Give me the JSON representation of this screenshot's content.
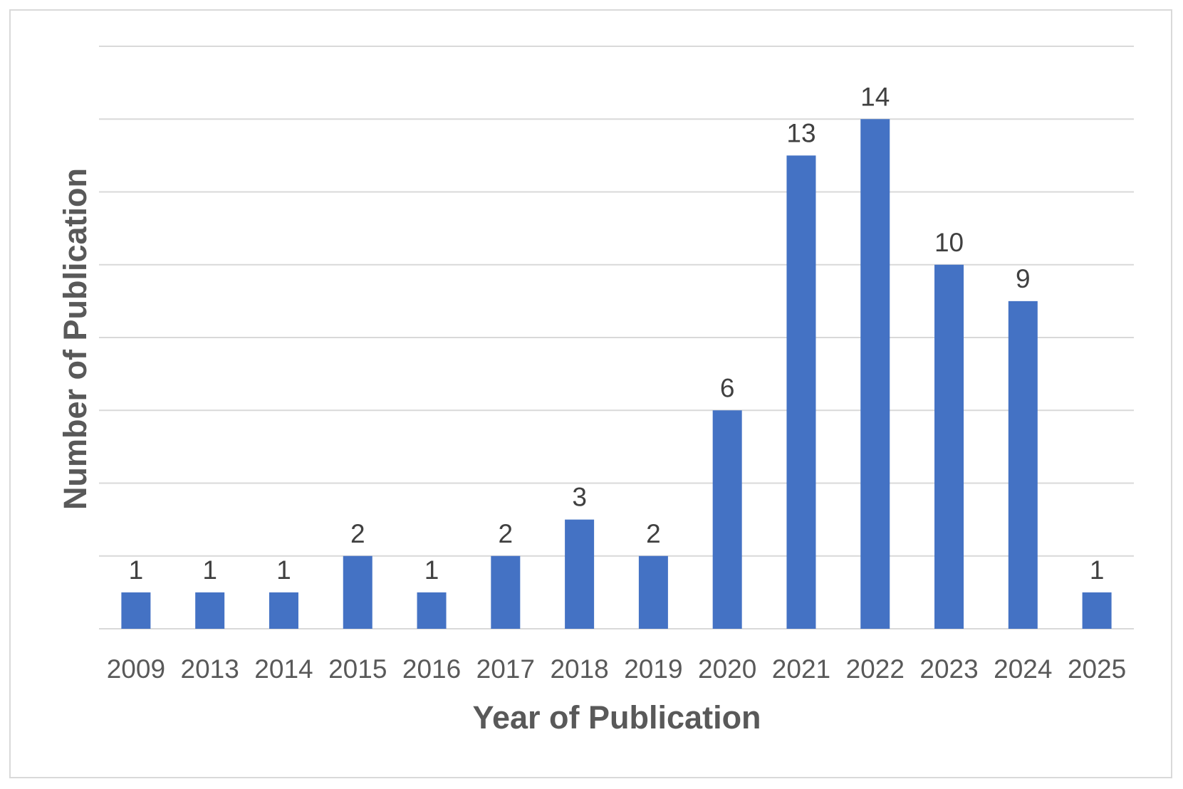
{
  "chart_data": {
    "type": "bar",
    "title": "",
    "xlabel": "Year of Publication",
    "ylabel": "Number of Publication",
    "categories": [
      "2009",
      "2013",
      "2014",
      "2015",
      "2016",
      "2017",
      "2018",
      "2019",
      "2020",
      "2021",
      "2022",
      "2023",
      "2024",
      "2025"
    ],
    "values": [
      1,
      1,
      1,
      2,
      1,
      2,
      3,
      2,
      6,
      13,
      14,
      10,
      9,
      1
    ],
    "ylim": [
      0,
      16
    ],
    "gridlines": true,
    "legend": "none",
    "data_labels": true,
    "bar_color": "#4472C4",
    "gridline_color": "#d9d9d9"
  }
}
